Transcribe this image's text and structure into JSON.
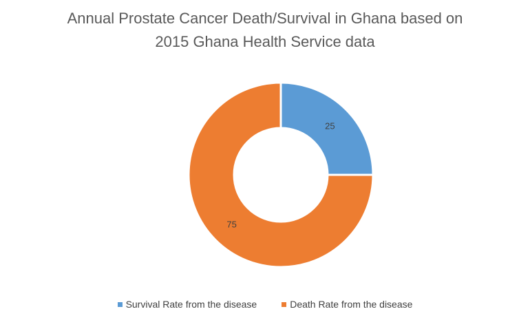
{
  "chart_data": {
    "type": "pie",
    "variant": "donut",
    "title_lines": [
      "Annual Prostate Cancer Death/Survival in Ghana based on",
      "2015 Ghana Health Service data"
    ],
    "categories": [
      "Survival Rate from the disease",
      "Death Rate from the disease"
    ],
    "values": [
      25,
      75
    ],
    "data_labels": [
      "25",
      "75"
    ],
    "colors": [
      "#5B9BD5",
      "#ED7D31"
    ],
    "legend_position": "bottom"
  }
}
